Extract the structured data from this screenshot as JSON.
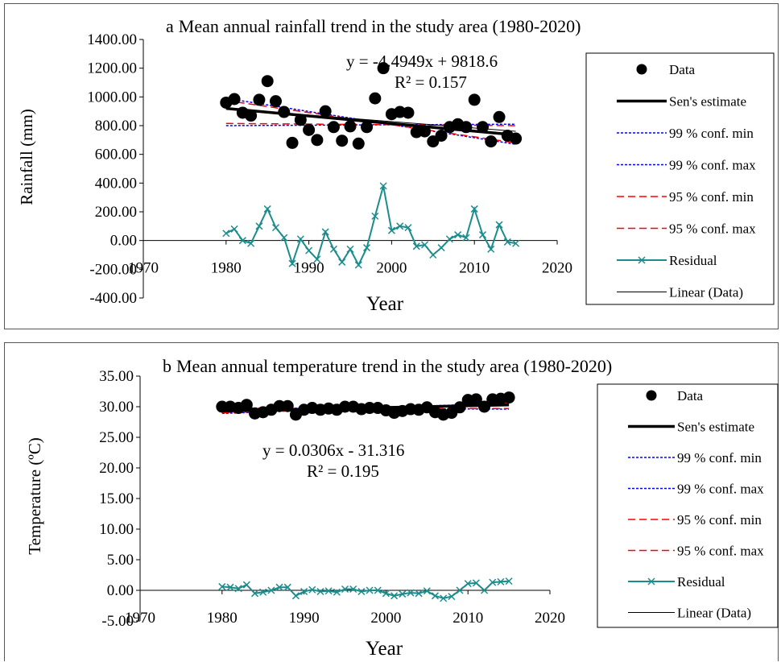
{
  "chart_data": [
    {
      "type": "scatter",
      "panel_letter": "a",
      "title": "Mean annual rainfall trend in the study area (1980-2020)",
      "xlabel": "Year",
      "ylabel": "Rainfall (mm)",
      "xlim": [
        1970,
        2020
      ],
      "ylim": [
        -400,
        1400
      ],
      "x_ticks": [
        1970,
        1980,
        1990,
        2000,
        2010,
        2020
      ],
      "y_ticks": [
        "-400.00",
        "-200.00",
        "0.00",
        "200.00",
        "400.00",
        "600.00",
        "800.00",
        "1000.00",
        "1200.00",
        "1400.00"
      ],
      "equation": "y = -4.4949x + 9818.6",
      "r_squared": "R² = 0.157",
      "legend": [
        "Data",
        "Sen's estimate",
        "99 % conf. min",
        "99 % conf. max",
        "95 % conf. min",
        "95 % conf. max",
        "Residual",
        "Linear (Data)"
      ],
      "series": [
        {
          "name": "Data",
          "x": [
            1980,
            1981,
            1982,
            1983,
            1984,
            1985,
            1986,
            1987,
            1988,
            1989,
            1990,
            1991,
            1992,
            1993,
            1994,
            1995,
            1996,
            1997,
            1998,
            1999,
            2000,
            2001,
            2002,
            2003,
            2004,
            2005,
            2006,
            2007,
            2008,
            2009,
            2010,
            2011,
            2012,
            2013,
            2014,
            2015
          ],
          "y": [
            960,
            985,
            890,
            870,
            980,
            1110,
            970,
            895,
            680,
            840,
            770,
            700,
            900,
            790,
            695,
            795,
            675,
            790,
            990,
            1200,
            880,
            895,
            890,
            755,
            760,
            690,
            730,
            790,
            810,
            790,
            980,
            790,
            690,
            860,
            730,
            710
          ]
        },
        {
          "name": "Sen's estimate",
          "x": [
            1980,
            2015
          ],
          "y": [
            920,
            735
          ]
        },
        {
          "name": "99 % conf. min",
          "x": [
            1980,
            2015
          ],
          "y": [
            800,
            810
          ]
        },
        {
          "name": "99 % conf. max",
          "x": [
            1980,
            2015
          ],
          "y": [
            990,
            670
          ]
        },
        {
          "name": "95 % conf. min",
          "x": [
            1980,
            2015
          ],
          "y": [
            815,
            800
          ]
        },
        {
          "name": "95 % conf. max",
          "x": [
            1980,
            2015
          ],
          "y": [
            975,
            680
          ]
        },
        {
          "name": "Residual",
          "x": [
            1980,
            1981,
            1982,
            1983,
            1984,
            1985,
            1986,
            1987,
            1988,
            1989,
            1990,
            1991,
            1992,
            1993,
            1994,
            1995,
            1996,
            1997,
            1998,
            1999,
            2000,
            2001,
            2002,
            2003,
            2004,
            2005,
            2006,
            2007,
            2008,
            2009,
            2010,
            2011,
            2012,
            2013,
            2014,
            2015
          ],
          "y": [
            50,
            80,
            0,
            -20,
            100,
            220,
            90,
            20,
            -160,
            10,
            -70,
            -130,
            60,
            -60,
            -150,
            -60,
            -170,
            -50,
            170,
            380,
            70,
            100,
            90,
            -40,
            -30,
            -100,
            -50,
            10,
            40,
            20,
            220,
            40,
            -60,
            110,
            -10,
            -20
          ]
        },
        {
          "name": "Linear (Data)",
          "x": [
            1980,
            2015
          ],
          "y": [
            918,
            761
          ]
        }
      ]
    },
    {
      "type": "scatter",
      "panel_letter": "b",
      "title": "Mean annual temperature trend in the study area (1980-2020)",
      "xlabel": "Year",
      "ylabel": "Temperature (ºC)",
      "xlim": [
        1970,
        2020
      ],
      "ylim": [
        -5,
        35
      ],
      "x_ticks": [
        1970,
        1980,
        1990,
        2000,
        2010,
        2020
      ],
      "y_ticks": [
        "-5.00",
        "0.00",
        "5.00",
        "10.00",
        "15.00",
        "20.00",
        "25.00",
        "30.00",
        "35.00"
      ],
      "equation": "y = 0.0306x - 31.316",
      "r_squared": "R² = 0.195",
      "legend": [
        "Data",
        "Sen's estimate",
        "99 % conf. min",
        "99 % conf. max",
        "95 % conf. min",
        "95 % conf. max",
        "Residual",
        "Linear (Data)"
      ],
      "series": [
        {
          "name": "Data",
          "x": [
            1980,
            1981,
            1982,
            1983,
            1984,
            1985,
            1986,
            1987,
            1988,
            1989,
            1990,
            1991,
            1992,
            1993,
            1994,
            1995,
            1996,
            1997,
            1998,
            1999,
            2000,
            2001,
            2002,
            2003,
            2004,
            2005,
            2006,
            2007,
            2008,
            2009,
            2010,
            2011,
            2012,
            2013,
            2014,
            2015
          ],
          "y": [
            30.0,
            30.0,
            29.8,
            30.3,
            28.9,
            29.1,
            29.5,
            30.1,
            30.1,
            28.7,
            29.5,
            29.8,
            29.5,
            29.7,
            29.5,
            30.0,
            30.0,
            29.6,
            29.8,
            29.8,
            29.4,
            29.0,
            29.3,
            29.6,
            29.5,
            29.9,
            29.1,
            28.7,
            29.0,
            29.9,
            31.1,
            31.2,
            30.0,
            31.2,
            31.3,
            31.5
          ]
        },
        {
          "name": "Sen's estimate",
          "x": [
            1980,
            2015
          ],
          "y": [
            29.3,
            30.3
          ]
        },
        {
          "name": "99 % conf. min",
          "x": [
            1980,
            2015
          ],
          "y": [
            28.9,
            30.6
          ]
        },
        {
          "name": "99 % conf. max",
          "x": [
            1980,
            2015
          ],
          "y": [
            29.8,
            29.6
          ]
        },
        {
          "name": "95 % conf. min",
          "x": [
            1980,
            2015
          ],
          "y": [
            29.0,
            30.5
          ]
        },
        {
          "name": "95 % conf. max",
          "x": [
            1980,
            2015
          ],
          "y": [
            29.7,
            29.7
          ]
        },
        {
          "name": "Residual",
          "x": [
            1980,
            1981,
            1982,
            1983,
            1984,
            1985,
            1986,
            1987,
            1988,
            1989,
            1990,
            1991,
            1992,
            1993,
            1994,
            1995,
            1996,
            1997,
            1998,
            1999,
            2000,
            2001,
            2002,
            2003,
            2004,
            2005,
            2006,
            2007,
            2008,
            2009,
            2010,
            2011,
            2012,
            2013,
            2014,
            2015
          ],
          "y": [
            0.6,
            0.5,
            0.3,
            0.9,
            -0.5,
            -0.3,
            0.0,
            0.5,
            0.5,
            -0.9,
            -0.2,
            0.1,
            -0.2,
            -0.1,
            -0.3,
            0.2,
            0.2,
            -0.2,
            0.0,
            0.0,
            -0.5,
            -0.9,
            -0.6,
            -0.4,
            -0.5,
            -0.1,
            -0.9,
            -1.3,
            -1.0,
            0.0,
            1.1,
            1.2,
            0.0,
            1.3,
            1.4,
            1.5
          ]
        },
        {
          "name": "Linear (Data)",
          "x": [
            1980,
            2015
          ],
          "y": [
            29.27,
            30.34
          ]
        }
      ]
    }
  ]
}
